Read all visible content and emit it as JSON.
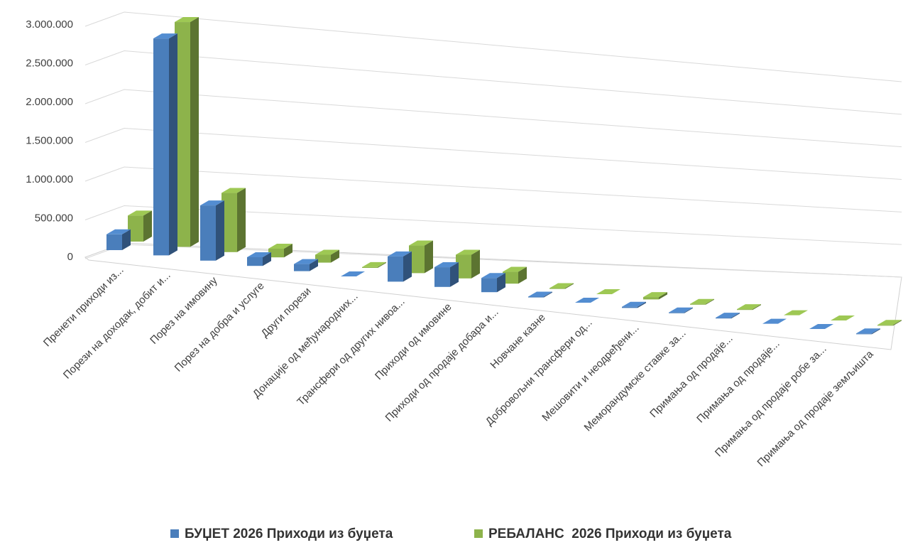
{
  "chart_data": {
    "type": "bar3d",
    "categories": [
      "Пренети приходи из...",
      "Порези на доходак, добит и...",
      "Порез на имовину",
      "Порез на добра и услуге",
      "Други порези",
      "Донације од међународних...",
      "Трансфери од других нивоа...",
      "Приходи од имовине",
      "Приходи од продаје добара и...",
      "Новчане казне",
      "Добровољни трансфери од...",
      "Мешовити и неодређени...",
      "Меморандумске ставке за...",
      "Примања од продаје...",
      "Примања од продаје...",
      "Примања од продаје робе за...",
      "Примања од продаје земљишта"
    ],
    "series": [
      {
        "name": "БУЏЕТ 2026 Приходи из буџета",
        "color": "#4a7ebb",
        "values": [
          200000,
          2750000,
          700000,
          110000,
          90000,
          0,
          320000,
          250000,
          180000,
          10000,
          0,
          15000,
          10000,
          10000,
          0,
          0,
          10000
        ]
      },
      {
        "name": "РЕБАЛАНС  2026 Приходи из буџета",
        "color": "#8db34b",
        "values": [
          330000,
          2850000,
          750000,
          110000,
          100000,
          10000,
          350000,
          300000,
          150000,
          10000,
          0,
          30000,
          10000,
          10000,
          0,
          0,
          10000
        ]
      }
    ],
    "ylim": [
      0,
      3000000
    ],
    "yticks": [
      0,
      {
        "value": 500000,
        "label": "500.000"
      },
      {
        "value": 1000000,
        "label": "1.000.000"
      },
      {
        "value": 1500000,
        "label": "1.500.000"
      },
      {
        "value": 2000000,
        "label": "2.000.000"
      },
      {
        "value": 2500000,
        "label": "2.500.000"
      },
      {
        "value": 3000000,
        "label": "3.000.000"
      }
    ],
    "grid": true,
    "legend": "bottom"
  }
}
